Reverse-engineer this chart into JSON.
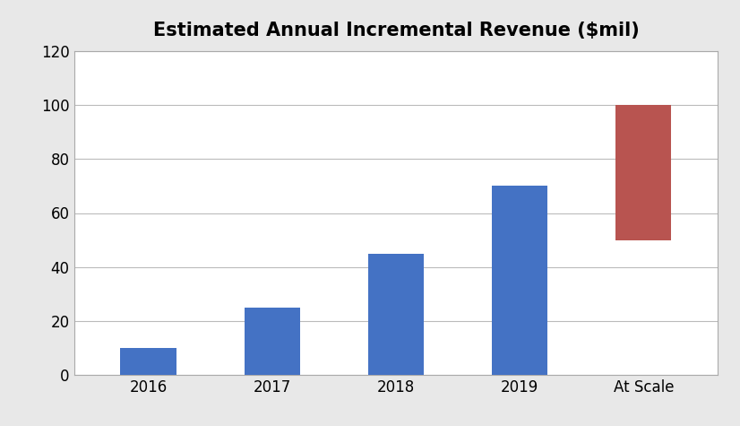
{
  "categories": [
    "2016",
    "2017",
    "2018",
    "2019",
    "At Scale"
  ],
  "bar_bottoms": [
    0,
    0,
    0,
    0,
    50
  ],
  "bar_heights": [
    10,
    25,
    45,
    70,
    50
  ],
  "bar_colors": [
    "#4472C4",
    "#4472C4",
    "#4472C4",
    "#4472C4",
    "#B85450"
  ],
  "title": "Estimated Annual Incremental Revenue ($mil)",
  "ylim": [
    0,
    120
  ],
  "yticks": [
    0,
    20,
    40,
    60,
    80,
    100,
    120
  ],
  "title_fontsize": 15,
  "title_fontweight": "bold",
  "background_color": "#FFFFFF",
  "outer_background": "#E8E8E8",
  "grid_color": "#BBBBBB",
  "spine_color": "#AAAAAA",
  "bar_width": 0.45,
  "tick_fontsize": 12,
  "xlim": [
    -0.6,
    4.6
  ]
}
